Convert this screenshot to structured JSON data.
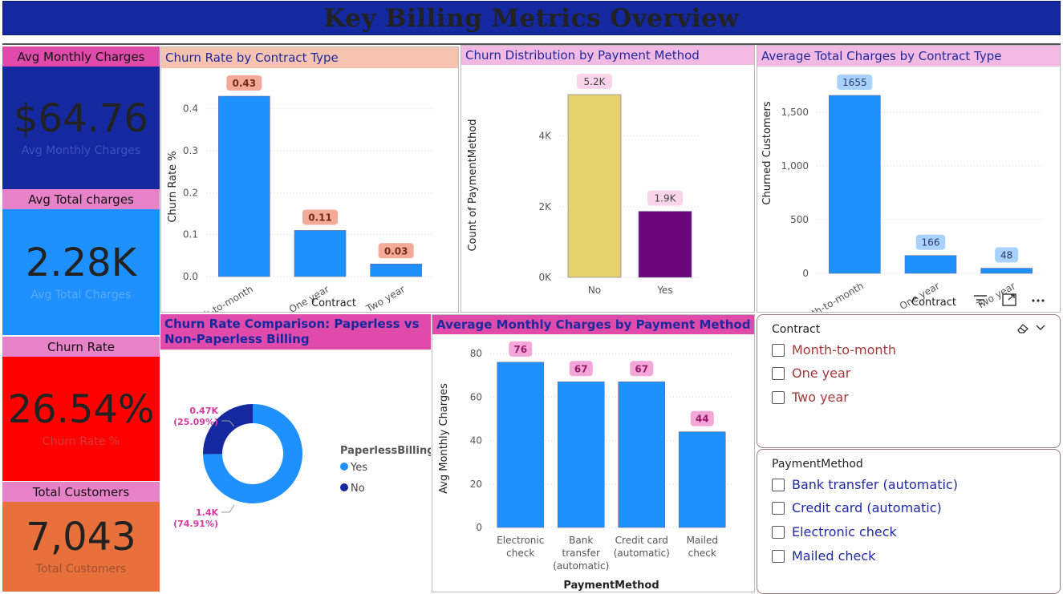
{
  "header": {
    "title": "Key Billing Metrics Overview"
  },
  "kpis": [
    {
      "label": "Avg Monthly Charges",
      "value": "$64.76",
      "sub": "Avg Monthly Charges",
      "head_bg": "#e04aaa",
      "body_bg": "#1428a0",
      "sub_color": "#4050c0"
    },
    {
      "label": "Avg Total charges",
      "value": "2.28K",
      "sub": "Avg Total Charges",
      "head_bg": "#e882c8",
      "body_bg": "#1e90ff",
      "sub_color": "#5aaaf0"
    },
    {
      "label": "Churn Rate",
      "value": "26.54%",
      "sub": "Churn Rate %",
      "head_bg": "#e882c8",
      "body_bg": "#ff0000",
      "sub_color": "#d63a3a"
    },
    {
      "label": "Total Customers",
      "value": "7,043",
      "sub": "Total Customers",
      "head_bg": "#e882c8",
      "body_bg": "#e8703a",
      "sub_color": "#a05030"
    }
  ],
  "panels": {
    "churn_contract": {
      "title": "Churn Rate by Contract Type",
      "title_bg": "#f6c3b0"
    },
    "churn_payment": {
      "title": "Churn Distribution by Payment Method",
      "title_bg": "#f2b9e2"
    },
    "avg_total_contract": {
      "title": "Average Total Charges by Contract Type",
      "title_bg": "#f2b9e2"
    },
    "paperless": {
      "title": "Churn Rate Comparison: Paperless vs Non-Paperless Billing",
      "title_bg": "#e04aaa"
    },
    "avg_monthly_payment": {
      "title": "Average Monthly Charges by Payment Method",
      "title_bg": "#e04aaa"
    }
  },
  "chart_data": [
    {
      "id": "churn_contract",
      "type": "bar",
      "categories": [
        "Month-to-month",
        "One year",
        "Two year"
      ],
      "values": [
        0.43,
        0.11,
        0.03
      ],
      "data_labels": [
        "0.43",
        "0.11",
        "0.03"
      ],
      "xlabel": "Contract",
      "ylabel": "Churn Rate %",
      "ylim": [
        0,
        0.43
      ],
      "yticks": [
        "0.0",
        "0.1",
        "0.2",
        "0.3",
        "0.4"
      ],
      "color": "#1e90ff",
      "label_bg": "#f2ab98",
      "label_color": "#7a2a10"
    },
    {
      "id": "churn_payment",
      "type": "bar",
      "categories": [
        "No",
        "Yes"
      ],
      "values": [
        5174,
        1869
      ],
      "data_labels": [
        "5.2K",
        "1.9K"
      ],
      "xlabel": "",
      "ylabel": "Count of PaymentMethod",
      "ylim": [
        0,
        5174
      ],
      "yticks": [
        "0K",
        "2K",
        "4K"
      ],
      "colors": [
        "#e6d36e",
        "#6b077c"
      ],
      "label_bg": "#f9d4ea",
      "label_color": "#444"
    },
    {
      "id": "avg_total_contract",
      "type": "bar",
      "categories": [
        "Month-to-month",
        "One year",
        "Two year"
      ],
      "values": [
        1655,
        166,
        48
      ],
      "data_labels": [
        "1655",
        "166",
        "48"
      ],
      "xlabel": "Contract",
      "ylabel": "Churned Customers",
      "ylim": [
        0,
        1655
      ],
      "yticks": [
        "0",
        "500",
        "1,000",
        "1,500"
      ],
      "color": "#1e90ff",
      "label_bg": "#a8d2fb",
      "label_color": "#2a3a6a"
    },
    {
      "id": "paperless",
      "type": "pie",
      "labels": [
        "Yes",
        "No"
      ],
      "values": [
        1.4,
        0.47
      ],
      "data_labels": [
        [
          "1.4K",
          "(74.91%)"
        ],
        [
          "0.47K",
          "(25.09%)"
        ]
      ],
      "percent": [
        74.91,
        25.09
      ],
      "colors": [
        "#1e90ff",
        "#1428a0"
      ],
      "legend_title": "PaperlessBilling",
      "legend": "right"
    },
    {
      "id": "avg_monthly_payment",
      "type": "bar",
      "categories": [
        [
          "Electronic",
          "check"
        ],
        [
          "Bank",
          "transfer",
          "(automatic)"
        ],
        [
          "Credit card",
          "(automatic)"
        ],
        [
          "Mailed",
          "check"
        ]
      ],
      "values": [
        76,
        67,
        67,
        44
      ],
      "data_labels": [
        "76",
        "67",
        "67",
        "44"
      ],
      "xlabel": "PaymentMethod",
      "ylabel": "Avg Monthly Charges",
      "ylim": [
        0,
        80
      ],
      "yticks": [
        "0",
        "20",
        "40",
        "60",
        "80"
      ],
      "color": "#1e90ff",
      "label_bg": "#f2a7d8",
      "label_color": "#9a1a6a"
    }
  ],
  "slicers": {
    "contract": {
      "title": "Contract",
      "items": [
        "Month-to-month",
        "One year",
        "Two year"
      ],
      "item_color": "#a03a3a"
    },
    "payment": {
      "title": "PaymentMethod",
      "items": [
        "Bank transfer (automatic)",
        "Credit card (automatic)",
        "Electronic check",
        "Mailed check"
      ],
      "item_color": "#1f2a9e"
    }
  },
  "toolbar": {
    "icons": [
      "filter-icon",
      "focus-mode-icon",
      "more-options-icon"
    ]
  }
}
